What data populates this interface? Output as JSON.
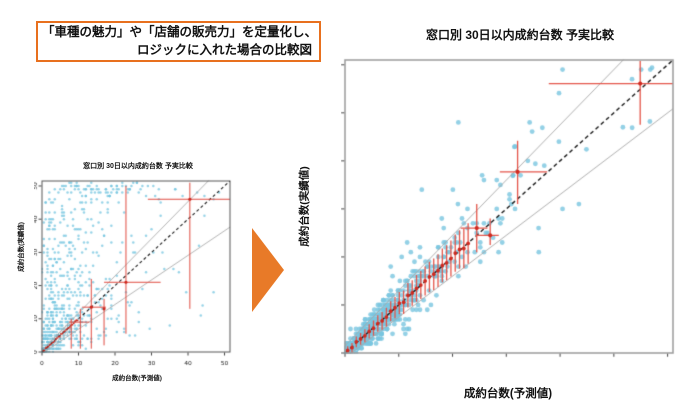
{
  "callout": {
    "line1": "「車種の魅力」や「店舗の販売力」を定量化し、",
    "line2": "ロジックに入れた場合の比較図",
    "border_color": "#E8701E",
    "text_color": "#111111"
  },
  "arrow": {
    "direction": "right",
    "color": "#E87A28"
  },
  "chart_data": [
    {
      "id": "left",
      "type": "scatter",
      "title": "窓口別 30日以内成約台数 予実比較",
      "xlabel": "成約台数(予測値)",
      "ylabel": "成約台数(実績値)",
      "xlim": [
        0,
        51.5
      ],
      "ylim": [
        0,
        51.5
      ],
      "xticks": [
        0,
        10,
        20,
        30,
        40,
        50
      ],
      "yticks": [
        0,
        10,
        20,
        30,
        40,
        50
      ],
      "xtick_labels_visible": true,
      "ytick_labels_visible": true,
      "ytick_labels_rotated": true,
      "grid": false,
      "legend": null,
      "point_color": "#74c5e0",
      "point_alpha": 0.75,
      "point_radius": 1.25,
      "n_points": 640,
      "distribution": {
        "kind": "fan",
        "seed": 11,
        "x_mean": 9.5,
        "sigma": 0.95,
        "x_quant": 0.5,
        "y_quant": 1
      },
      "diagonal": {
        "eq": "y=x",
        "color": "#1a1a1a",
        "dash": true
      },
      "band_lines": [
        {
          "slope": 1.12,
          "intercept": 0.5
        },
        {
          "slope": 0.74,
          "intercept": -0.5
        }
      ],
      "band_color": "#adadad",
      "red_color": "#e14b40",
      "red_dot_color": "#cc281e",
      "red_v_lines": [
        {
          "x": 8,
          "y1": 1,
          "y2": 10
        },
        {
          "x": 10.5,
          "y1": 1,
          "y2": 13
        },
        {
          "x": 13.5,
          "y1": 1,
          "y2": 22
        },
        {
          "x": 17,
          "y1": 2,
          "y2": 16
        },
        {
          "x": 23,
          "y1": 5.5,
          "y2": 50
        },
        {
          "x": 40.5,
          "y1": 13,
          "y2": 51
        }
      ],
      "red_h_lines": [
        {
          "y": 9,
          "x1": 7.5,
          "x2": 13
        },
        {
          "y": 13.5,
          "x1": 11,
          "x2": 17.5
        },
        {
          "y": 21,
          "x1": 17,
          "x2": 32.5
        },
        {
          "y": 46,
          "x1": 29,
          "x2": 51.5
        }
      ],
      "red_cross_dots": [
        [
          13.5,
          13.5
        ],
        [
          17,
          13
        ],
        [
          23,
          21
        ],
        [
          40.5,
          46
        ]
      ],
      "red_diag_dots": {
        "x_from": 0.3,
        "x_to": 10,
        "step": 0.35,
        "jitter": 0.5,
        "radius": 0.9
      },
      "gray_bars": {
        "x_from": 0.5,
        "x_to": 8,
        "step": 0.5,
        "half_base": 0.7,
        "half_slope": 0.15,
        "color": "rgba(70,70,70,0.32)"
      }
    },
    {
      "id": "right",
      "type": "scatter",
      "title": "窓口別 30日以内成約台数 予実比較",
      "xlabel": "成約台数(予測値)",
      "ylabel": "成約台数(実績値)",
      "xlim": [
        0,
        61
      ],
      "ylim": [
        0,
        61
      ],
      "xticks": [
        0,
        10,
        20,
        30,
        40,
        50,
        60
      ],
      "yticks": [
        0,
        10,
        20,
        30,
        40,
        50,
        60
      ],
      "xtick_labels_visible": false,
      "ytick_labels_visible": false,
      "ytick_labels_rotated": false,
      "grid": false,
      "legend": null,
      "point_color": "#79c5e0",
      "point_alpha": 0.8,
      "point_radius": 2.4,
      "n_points": 680,
      "distribution": {
        "kind": "tight",
        "seed": 23,
        "x_mean": 8,
        "noise_base": 0.5,
        "noise_slope": 0.17,
        "outlier_rate": 0.03,
        "x_quant": 0.34,
        "y_quant": 1
      },
      "outlier_points": [
        [
          57.1,
          59.4
        ],
        [
          39.8,
          54.1
        ],
        [
          56.7,
          48.2
        ],
        [
          53.4,
          46.9
        ],
        [
          36.7,
          46.9
        ],
        [
          34.8,
          46.1
        ],
        [
          31.5,
          42.9
        ],
        [
          35.4,
          39.4
        ],
        [
          44.9,
          42.4
        ],
        [
          31.2,
          36.9
        ],
        [
          25.5,
          37
        ],
        [
          21,
          31
        ],
        [
          18,
          28
        ],
        [
          43.5,
          31
        ],
        [
          36,
          26
        ]
      ],
      "diagonal": {
        "eq": "y=x",
        "color": "#1a1a1a",
        "dash": true
      },
      "band_lines": [
        {
          "slope": 1.15,
          "intercept": 1.5
        },
        {
          "slope": 0.85,
          "intercept": -1
        }
      ],
      "band_color": "#a8a8a8",
      "red_color": "#e4554a",
      "red_dot_color": "#cf2a20",
      "red_error_bars": {
        "x_from": 0.5,
        "x_to": 23,
        "step": 0.8,
        "half_base": 0.8,
        "half_slope": 0.15,
        "jitter": 0.7,
        "dot_radius": 1.9
      },
      "red_v_lines": [
        {
          "x": 54.9,
          "y1": 47.5,
          "y2": 60.8
        },
        {
          "x": 32.1,
          "y1": 31,
          "y2": 44.2
        },
        {
          "x": 24.5,
          "y1": 21,
          "y2": 31
        },
        {
          "x": 27,
          "y1": 22.5,
          "y2": 28
        }
      ],
      "red_h_lines": [
        {
          "y": 56.1,
          "x1": 37.9,
          "x2": 61
        },
        {
          "y": 37.7,
          "x1": 28.8,
          "x2": 37.6
        },
        {
          "y": 26,
          "x1": 21.5,
          "x2": 26.5
        },
        {
          "y": 24.5,
          "x1": 24.3,
          "x2": 28.6
        }
      ],
      "red_cross_dots": [
        [
          54.9,
          56.1
        ],
        [
          32.1,
          37.7
        ],
        [
          24.5,
          26
        ],
        [
          27,
          24.5
        ]
      ]
    }
  ]
}
